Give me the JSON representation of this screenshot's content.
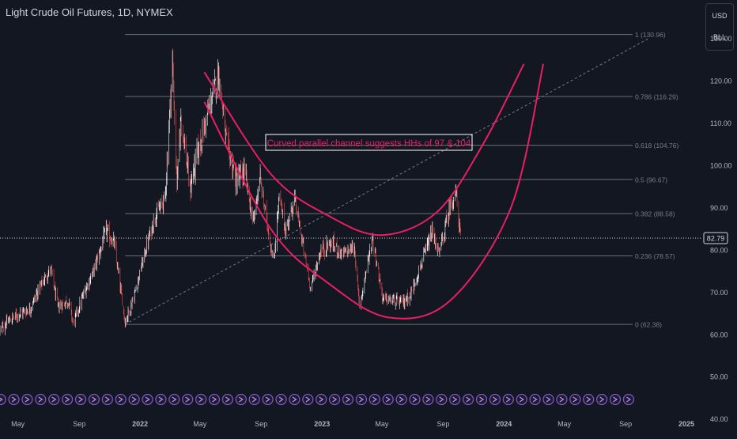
{
  "header": {
    "title": "Light Crude Oil Futures, 1D, NYMEX",
    "currency_label": "USD",
    "unit_label": "BLL"
  },
  "colors": {
    "background": "#131722",
    "channel": "#e91e63",
    "candle_up": "#ffffff",
    "candle_down": "#ef5350",
    "fib_line": "#6b6f7a",
    "event_marker": "#7e57c2"
  },
  "chart_data": {
    "type": "candlestick",
    "title": "Light Crude Oil Futures, 1D, NYMEX",
    "x_range": [
      "2021-03-26",
      "2025-01-20"
    ],
    "y_range": [
      39,
      135
    ],
    "price_axis_ticks": [
      "130.00",
      "120.00",
      "110.00",
      "100.00",
      "90.00",
      "80.00",
      "70.00",
      "60.00",
      "50.00",
      "40.00"
    ],
    "time_axis_ticks": [
      {
        "label": "May",
        "date": "2021-05-01"
      },
      {
        "label": "Sep",
        "date": "2021-09-01"
      },
      {
        "label": "2022",
        "date": "2022-01-01"
      },
      {
        "label": "May",
        "date": "2022-05-01"
      },
      {
        "label": "Sep",
        "date": "2022-09-01"
      },
      {
        "label": "2023",
        "date": "2023-01-01"
      },
      {
        "label": "May",
        "date": "2023-05-01"
      },
      {
        "label": "Sep",
        "date": "2023-09-01"
      },
      {
        "label": "2024",
        "date": "2024-01-01"
      },
      {
        "label": "May",
        "date": "2024-05-01"
      },
      {
        "label": "Sep",
        "date": "2024-09-01"
      },
      {
        "label": "2025",
        "date": "2025-01-01"
      }
    ],
    "last_price": "82.79",
    "fibonacci": {
      "start_date": "2021-12-02",
      "end_date": "2024-09-15",
      "anchor_low": {
        "date": "2021-12-02",
        "price": 62.38
      },
      "anchor_high": {
        "date": "2022-03-07",
        "price": 130.96
      },
      "levels": [
        {
          "label": "1 (130.96)",
          "price": 130.96
        },
        {
          "label": "0.786 (116.29)",
          "price": 116.29
        },
        {
          "label": "0.618 (104.76)",
          "price": 104.76
        },
        {
          "label": "0.5 (96.67)",
          "price": 96.67
        },
        {
          "label": "0.382 (88.58)",
          "price": 88.58
        },
        {
          "label": "0.236 (78.57)",
          "price": 78.57
        },
        {
          "label": "0 (62.38)",
          "price": 62.38
        }
      ]
    },
    "trendline": {
      "from": {
        "date": "2021-12-02",
        "price": 62.4
      },
      "to": {
        "date": "2024-10-17",
        "price": 130.0
      }
    },
    "channel": {
      "upper": [
        {
          "date": "2022-05-10",
          "price": 122
        },
        {
          "date": "2022-09-20",
          "price": 98
        },
        {
          "date": "2023-01-15",
          "price": 88
        },
        {
          "date": "2023-05-01",
          "price": 83.5
        },
        {
          "date": "2023-08-20",
          "price": 89
        },
        {
          "date": "2023-11-20",
          "price": 105
        },
        {
          "date": "2024-02-10",
          "price": 124
        }
      ],
      "lower": [
        {
          "date": "2022-05-10",
          "price": 115
        },
        {
          "date": "2022-09-20",
          "price": 85
        },
        {
          "date": "2023-01-15",
          "price": 72
        },
        {
          "date": "2023-05-15",
          "price": 64
        },
        {
          "date": "2023-09-15",
          "price": 68
        },
        {
          "date": "2024-01-15",
          "price": 90
        },
        {
          "date": "2024-03-20",
          "price": 124
        }
      ]
    },
    "annotation": "Curved parallel channel suggests HHs of 97 & 104",
    "event_markers": {
      "count": 48,
      "start_date": "2021-03-27",
      "end_date": "2024-09-07"
    },
    "price_series": [
      {
        "date": "2021-03-26",
        "close": 61.0
      },
      {
        "date": "2021-04-15",
        "close": 63.5
      },
      {
        "date": "2021-05-05",
        "close": 65.0
      },
      {
        "date": "2021-05-25",
        "close": 66.0
      },
      {
        "date": "2021-06-15",
        "close": 71.5
      },
      {
        "date": "2021-07-06",
        "close": 75.5
      },
      {
        "date": "2021-07-20",
        "close": 66.5
      },
      {
        "date": "2021-08-10",
        "close": 68.0
      },
      {
        "date": "2021-08-20",
        "close": 62.5
      },
      {
        "date": "2021-09-10",
        "close": 69.5
      },
      {
        "date": "2021-10-01",
        "close": 75.5
      },
      {
        "date": "2021-10-25",
        "close": 84.5
      },
      {
        "date": "2021-11-10",
        "close": 81.5
      },
      {
        "date": "2021-11-26",
        "close": 68.0
      },
      {
        "date": "2021-12-02",
        "close": 63.0
      },
      {
        "date": "2021-12-20",
        "close": 69.0
      },
      {
        "date": "2022-01-10",
        "close": 79.0
      },
      {
        "date": "2022-01-31",
        "close": 88.0
      },
      {
        "date": "2022-02-20",
        "close": 92.0
      },
      {
        "date": "2022-03-07",
        "close": 125.0
      },
      {
        "date": "2022-03-16",
        "close": 95.0
      },
      {
        "date": "2022-03-24",
        "close": 112.0
      },
      {
        "date": "2022-04-11",
        "close": 94.5
      },
      {
        "date": "2022-04-25",
        "close": 102.0
      },
      {
        "date": "2022-05-16",
        "close": 112.0
      },
      {
        "date": "2022-06-08",
        "close": 122.0
      },
      {
        "date": "2022-06-22",
        "close": 106.0
      },
      {
        "date": "2022-07-14",
        "close": 96.0
      },
      {
        "date": "2022-07-29",
        "close": 98.5
      },
      {
        "date": "2022-08-16",
        "close": 86.5
      },
      {
        "date": "2022-08-29",
        "close": 97.0
      },
      {
        "date": "2022-09-26",
        "close": 77.0
      },
      {
        "date": "2022-10-07",
        "close": 92.5
      },
      {
        "date": "2022-10-20",
        "close": 84.5
      },
      {
        "date": "2022-11-07",
        "close": 92.0
      },
      {
        "date": "2022-12-09",
        "close": 71.0
      },
      {
        "date": "2022-12-30",
        "close": 80.0
      },
      {
        "date": "2023-01-20",
        "close": 81.5
      },
      {
        "date": "2023-02-10",
        "close": 79.0
      },
      {
        "date": "2023-03-07",
        "close": 80.5
      },
      {
        "date": "2023-03-17",
        "close": 66.5
      },
      {
        "date": "2023-04-12",
        "close": 83.0
      },
      {
        "date": "2023-05-03",
        "close": 68.5
      },
      {
        "date": "2023-06-12",
        "close": 67.5
      },
      {
        "date": "2023-06-28",
        "close": 69.5
      },
      {
        "date": "2023-07-20",
        "close": 77.0
      },
      {
        "date": "2023-08-10",
        "close": 84.0
      },
      {
        "date": "2023-08-24",
        "close": 79.0
      },
      {
        "date": "2023-09-15",
        "close": 90.5
      },
      {
        "date": "2023-09-27",
        "close": 93.5
      },
      {
        "date": "2023-10-06",
        "close": 82.79
      }
    ]
  }
}
